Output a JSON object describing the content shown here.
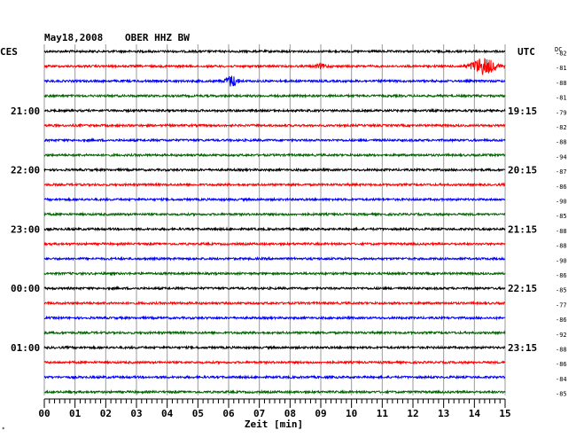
{
  "header": {
    "date": "May18,2008",
    "station": "OBER HHZ BW",
    "left_tz": "CES",
    "right_tz": "UTC",
    "dc_label": "DC"
  },
  "chart_data": {
    "type": "line",
    "title": "May18,2008   OBER HHZ BW",
    "xlabel": "Zeit [min]",
    "x_range": [
      0,
      15
    ],
    "x_ticks": [
      "00",
      "01",
      "02",
      "03",
      "04",
      "05",
      "06",
      "07",
      "08",
      "09",
      "10",
      "11",
      "12",
      "13",
      "14",
      "15"
    ],
    "trace_count": 24,
    "trace_colors": [
      "#000000",
      "#ff0000",
      "#0000ff",
      "#006400"
    ],
    "left_time_labels": [
      {
        "trace": 4,
        "label": "21:00"
      },
      {
        "trace": 8,
        "label": "22:00"
      },
      {
        "trace": 12,
        "label": "23:00"
      },
      {
        "trace": 16,
        "label": "00:00"
      },
      {
        "trace": 20,
        "label": "01:00"
      }
    ],
    "right_time_labels": [
      {
        "trace": 4,
        "label": "19:15"
      },
      {
        "trace": 8,
        "label": "20:15"
      },
      {
        "trace": 12,
        "label": "21:15"
      },
      {
        "trace": 16,
        "label": "22:15"
      },
      {
        "trace": 20,
        "label": "23:15"
      }
    ],
    "dc_offsets": [
      "-82",
      "-81",
      "-88",
      "-81",
      "-79",
      "-82",
      "-88",
      "-94",
      "-87",
      "-86",
      "-90",
      "-85",
      "-88",
      "-88",
      "-90",
      "-86",
      "-85",
      "-77",
      "-86",
      "-92",
      "-88",
      "-86",
      "-84",
      "-85"
    ],
    "events": [
      {
        "trace": 1,
        "minute": 14.3,
        "amplitude": "large"
      },
      {
        "trace": 2,
        "minute": 6.1,
        "amplitude": "medium"
      },
      {
        "trace": 1,
        "minute": 9.0,
        "amplitude": "small"
      }
    ]
  }
}
